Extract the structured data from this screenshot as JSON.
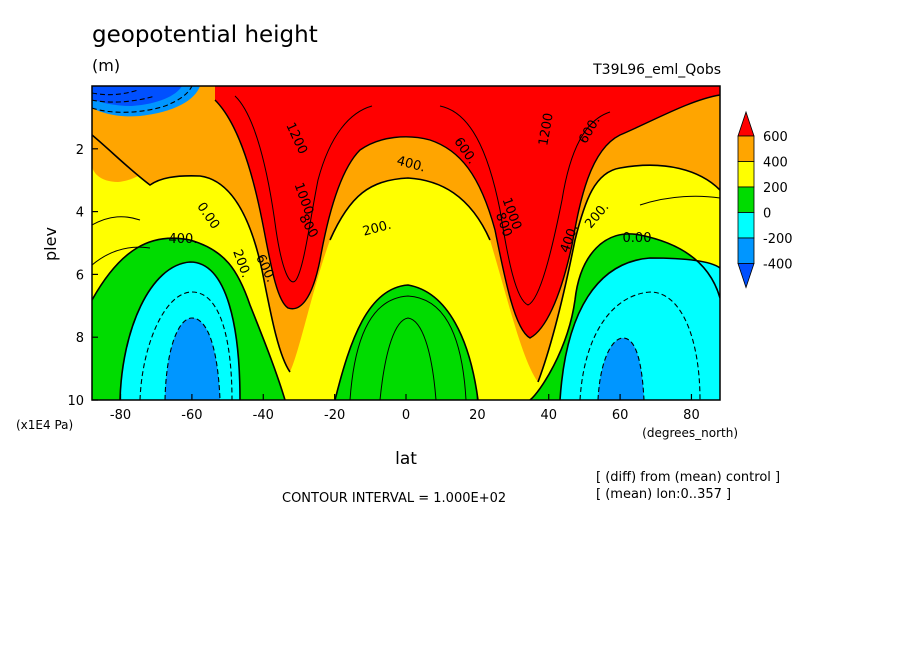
{
  "header": {
    "title": "geopotential height",
    "units": "(m)",
    "run_label": "T39L96_eml_Qobs"
  },
  "footer": {
    "contour_interval": "CONTOUR INTERVAL = 1.000E+02",
    "diff_note": "[ (diff) from (mean) control ]",
    "mean_note": "[ (mean) lon:0..357 ]"
  },
  "chart_data": {
    "type": "heatmap",
    "title": "geopotential height",
    "xlabel": "lat",
    "xunit": "(degrees_north)",
    "ylabel": "plev",
    "yunit": "(x1E4 Pa)",
    "xlim": [
      -88,
      88
    ],
    "ylim": [
      0,
      10
    ],
    "y_inverted": true,
    "xticks": [
      -80,
      -60,
      -40,
      -20,
      0,
      20,
      40,
      60,
      80
    ],
    "yticks": [
      2,
      4,
      6,
      8,
      10
    ],
    "colorbar": {
      "levels": [
        600,
        400,
        200,
        0,
        -200,
        -400
      ],
      "colors": [
        "#ff0000",
        "#ffa500",
        "#ffff00",
        "#00dc00",
        "#00ffff",
        "#0096ff",
        "#0050ff"
      ]
    },
    "contour_labels": [
      "1200",
      "1000",
      "800",
      "600.",
      "400.",
      "200.",
      "0.00",
      "400.",
      "600.",
      "800",
      "1000",
      "1200",
      "600.",
      "400.",
      "200.",
      "0.00",
      "200."
    ],
    "contour_interval": 100
  }
}
